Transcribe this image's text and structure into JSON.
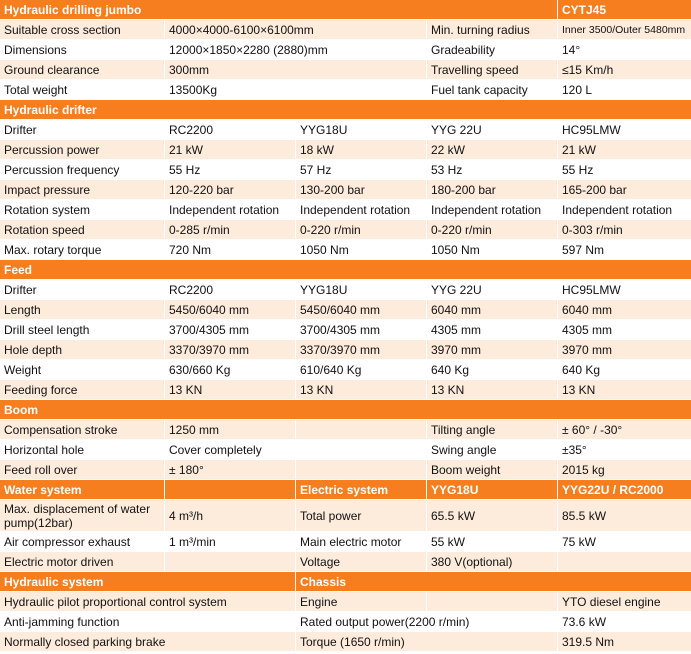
{
  "table": {
    "rows": [
      [
        "Hydraulic drilling jumbo",
        "CYTJ45"
      ],
      [
        "Suitable cross section",
        "4000×4000-6100×6100mm",
        "Min. turning radius",
        "Inner 3500/Outer 5480mm"
      ],
      [
        "Dimensions",
        "12000×1850×2280 (2880)mm",
        "Gradeability",
        "14°"
      ],
      [
        "Ground clearance",
        "300mm",
        "Travelling speed",
        "≤15 Km/h"
      ],
      [
        "Total weight",
        "13500Kg",
        "Fuel tank capacity",
        "120 L"
      ],
      [
        "Hydraulic drifter"
      ],
      [
        "Drifter",
        "RC2200",
        "YYG18U",
        "YYG 22U",
        "HC95LMW"
      ],
      [
        "Percussion power",
        "21 kW",
        "18 kW",
        "22 kW",
        "21 kW"
      ],
      [
        "Percussion frequency",
        "55 Hz",
        "57 Hz",
        "53 Hz",
        "55 Hz"
      ],
      [
        "Impact pressure",
        "120-220  bar",
        "130-200  bar",
        "180-200  bar",
        "165-200  bar"
      ],
      [
        "Rotation system",
        "Independent rotation",
        "Independent rotation",
        "Independent rotation",
        "Independent rotation"
      ],
      [
        "Rotation speed",
        "0-285 r/min",
        "0-220 r/min",
        "0-220 r/min",
        "0-303 r/min"
      ],
      [
        "Max. rotary torque",
        "720 Nm",
        "1050 Nm",
        "1050 Nm",
        "597 Nm"
      ],
      [
        "Feed"
      ],
      [
        "Drifter",
        "RC2200",
        "YYG18U",
        "YYG 22U",
        "HC95LMW"
      ],
      [
        "Length",
        "5450/6040 mm",
        "5450/6040 mm",
        "6040 mm",
        "6040 mm"
      ],
      [
        "Drill steel length",
        "3700/4305 mm",
        "3700/4305 mm",
        "4305 mm",
        "4305 mm"
      ],
      [
        "Hole depth",
        "3370/3970 mm",
        "3370/3970 mm",
        "3970 mm",
        "3970 mm"
      ],
      [
        "Weight",
        "630/660 Kg",
        "610/640 Kg",
        "640 Kg",
        "640 Kg"
      ],
      [
        "Feeding force",
        "13 KN",
        "13 KN",
        "13 KN",
        "13 KN"
      ],
      [
        "Boom"
      ],
      [
        "Compensation stroke",
        "1250 mm",
        "Tilting angle",
        "± 60° / -30°"
      ],
      [
        "Horizontal hole",
        "Cover completely",
        "Swing angle",
        "±35°"
      ],
      [
        "Feed roll over",
        "± 180°",
        "Boom weight",
        "2015 kg"
      ],
      [
        "Water system",
        "Electric system",
        "YYG18U",
        "YYG22U / RC2000"
      ],
      [
        "Max. displacement of water pump(12bar)",
        "4 m³/h",
        "Total power",
        "65.5 kW",
        "85.5 kW"
      ],
      [
        "Air compressor exhaust",
        "1 m³/min",
        "Main electric motor",
        "55 kW",
        "75 kW"
      ],
      [
        "Electric motor driven",
        "Voltage",
        "380 V(optional)"
      ],
      [
        "Hydraulic system",
        "Chassis"
      ],
      [
        "Hydraulic pilot proportional control system",
        "Engine",
        "YTO diesel engine"
      ],
      [
        "Anti-jamming function",
        "Rated output power(2200 r/min)",
        "73.6 kW"
      ],
      [
        "Normally closed parking brake",
        "Torque (1650 r/min)",
        "319.5 Nm"
      ]
    ]
  }
}
